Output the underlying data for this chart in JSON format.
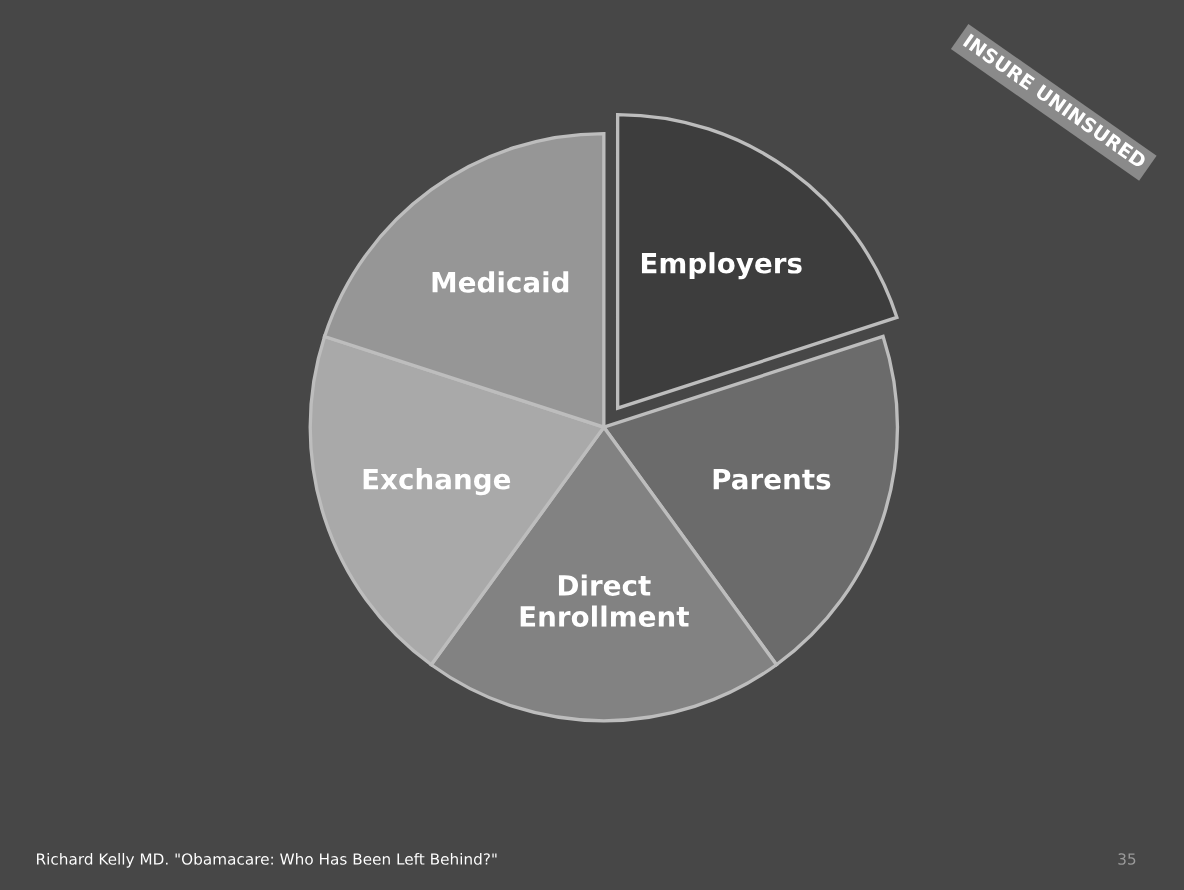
{
  "chart_data": {
    "type": "pie",
    "categories": [
      "Employers",
      "Parents",
      "Direct\nEnrollment",
      "Exchange",
      "Medicaid"
    ],
    "values": [
      20,
      20,
      20,
      20,
      20
    ],
    "colors": [
      "#3d3d3d",
      "#6b6b6b",
      "#828282",
      "#a9a9a9",
      "#969696"
    ],
    "annotations": [
      "INSURE UNINSURED",
      "Richard Kelly MD. \"Obamacare: Who Has Been Left Behind?\"",
      "35"
    ]
  }
}
